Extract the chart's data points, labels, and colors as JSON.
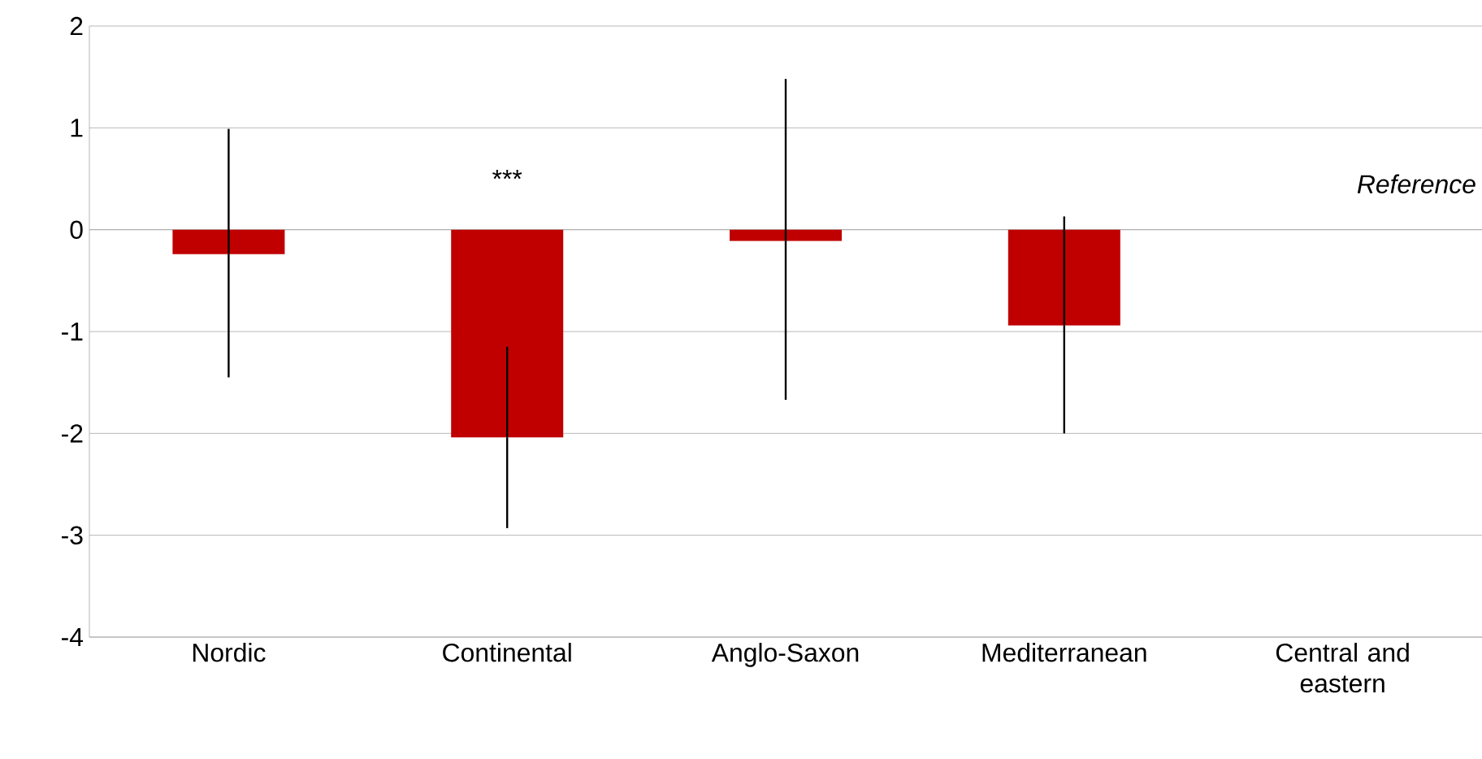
{
  "chart_data": {
    "type": "bar",
    "categories": [
      "Nordic",
      "Continental",
      "Anglo-Saxon",
      "Mediterranean",
      "Central and eastern"
    ],
    "values": [
      -0.24,
      -2.04,
      -0.11,
      -0.94,
      null
    ],
    "errors": [
      [
        -1.45,
        0.99
      ],
      [
        -2.93,
        -1.15
      ],
      [
        -1.67,
        1.48
      ],
      [
        -2.0,
        0.13
      ],
      null
    ],
    "color": "#c00000",
    "ylim": [
      -4,
      2
    ],
    "yticks": [
      -4,
      -3,
      -2,
      -1,
      0,
      1,
      2
    ],
    "grid": "y",
    "annotations": [
      "***",
      "Reference"
    ]
  }
}
